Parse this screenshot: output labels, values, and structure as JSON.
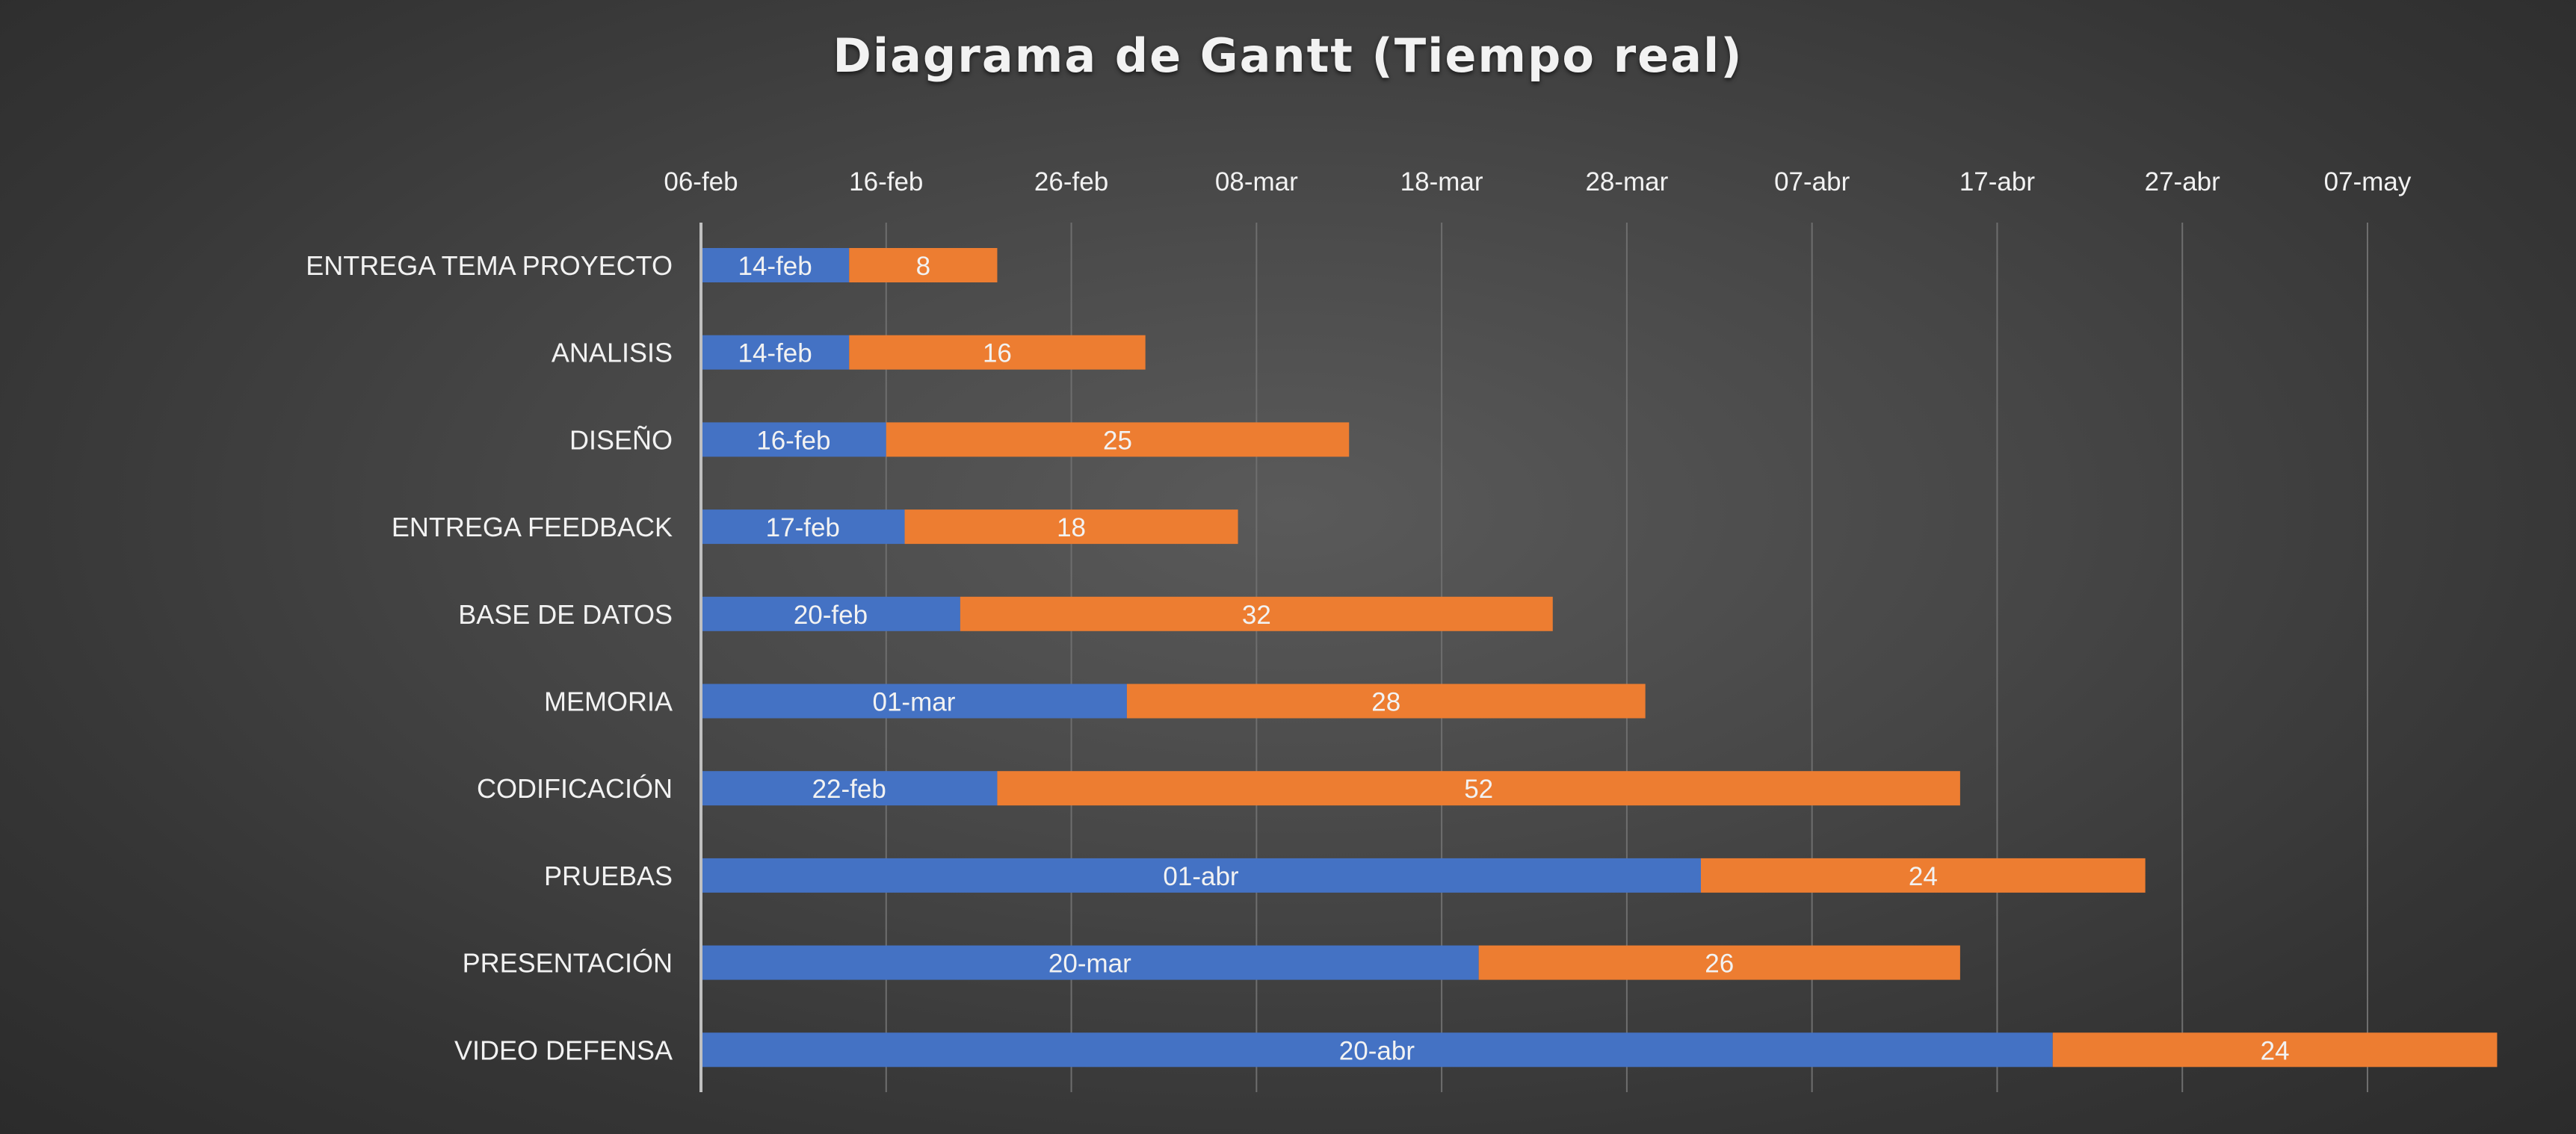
{
  "chart_data": {
    "type": "bar",
    "orientation": "horizontal-stacked-gantt",
    "title": "Diagrama de Gantt (Tiempo real)",
    "x_axis": {
      "position": "top",
      "ticks": [
        "06-feb",
        "16-feb",
        "26-feb",
        "08-mar",
        "18-mar",
        "28-mar",
        "07-abr",
        "17-abr",
        "27-abr",
        "07-may"
      ],
      "tick_dates": [
        "2023-02-06",
        "2023-02-16",
        "2023-02-26",
        "2023-03-08",
        "2023-03-18",
        "2023-03-28",
        "2023-04-07",
        "2023-04-17",
        "2023-04-27",
        "2023-05-07"
      ],
      "range": [
        "2023-02-06",
        "2023-05-07"
      ],
      "grid": true
    },
    "categories": [
      "ENTREGA TEMA PROYECTO",
      "ANALISIS",
      "DISEÑO",
      "ENTREGA FEEDBACK",
      "BASE DE DATOS",
      "MEMORIA",
      "CODIFICACIÓN",
      "PRUEBAS",
      "PRESENTACIÓN",
      "VIDEO DEFENSA"
    ],
    "series": [
      {
        "color": "#4472c4",
        "start_dates": [
          "2023-02-14",
          "2023-02-14",
          "2023-02-16",
          "2023-02-17",
          "2023-02-20",
          "2023-03-01",
          "2023-02-22",
          "2023-04-01",
          "2023-03-20",
          "2023-04-20"
        ],
        "labels": [
          "14-feb",
          "14-feb",
          "16-feb",
          "17-feb",
          "20-feb",
          "01-mar",
          "22-feb",
          "01-abr",
          "20-mar",
          "20-abr"
        ]
      },
      {
        "color": "#ed7d31",
        "values": [
          8,
          16,
          25,
          18,
          32,
          28,
          52,
          24,
          26,
          24
        ],
        "labels": [
          "8",
          "16",
          "25",
          "18",
          "32",
          "28",
          "52",
          "24",
          "26",
          "24"
        ]
      }
    ],
    "colors": {
      "start": "#4472c4",
      "duration": "#ed7d31",
      "text": "#f2f2f2",
      "grid": "#6e6e6e",
      "axis_line": "#bfbfbf"
    }
  }
}
